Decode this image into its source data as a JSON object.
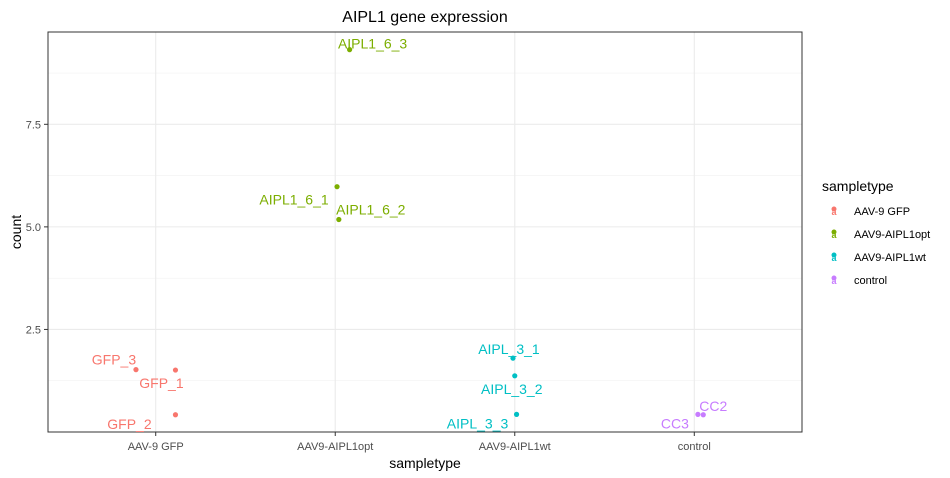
{
  "chart_data": {
    "type": "scatter",
    "title": "AIPL1 gene expression",
    "xlabel": "sampletype",
    "ylabel": "count",
    "categories": [
      "AAV-9 GFP",
      "AAV9-AIPL1opt",
      "AAV9-AIPL1wt",
      "control"
    ],
    "ylim": [
      0,
      9.75
    ],
    "yticks": [
      2.5,
      5.0,
      7.5
    ],
    "ytick_labels": [
      "2.5",
      "5.0",
      "7.5"
    ],
    "grid": true,
    "legend": {
      "title": "sampletype",
      "position": "right",
      "entries": [
        "AAV-9 GFP",
        "AAV9-AIPL1opt",
        "AAV9-AIPL1wt",
        "control"
      ]
    },
    "colors": {
      "AAV-9 GFP": "#F8766D",
      "AAV9-AIPL1opt": "#7CAE00",
      "AAV9-AIPL1wt": "#00BFC4",
      "control": "#C77CFF"
    },
    "points": [
      {
        "label": "GFP_3",
        "group": "AAV-9 GFP",
        "x": 0.89,
        "y": 1.52
      },
      {
        "label": "GFP_1",
        "group": "AAV-9 GFP",
        "x": 1.11,
        "y": 1.51
      },
      {
        "label": "GFP_2",
        "group": "AAV-9 GFP",
        "x": 1.11,
        "y": 0.42
      },
      {
        "label": "AIPL1_6_3",
        "group": "AAV9-AIPL1opt",
        "x": 2.08,
        "y": 9.32
      },
      {
        "label": "AIPL1_6_1",
        "group": "AAV9-AIPL1opt",
        "x": 2.01,
        "y": 5.98
      },
      {
        "label": "AIPL1_6_2",
        "group": "AAV9-AIPL1opt",
        "x": 2.02,
        "y": 5.18
      },
      {
        "label": "AIPL_3_1",
        "group": "AAV9-AIPL1wt",
        "x": 2.99,
        "y": 1.8
      },
      {
        "label": "AIPL_3_2",
        "group": "AAV9-AIPL1wt",
        "x": 3.0,
        "y": 1.37
      },
      {
        "label": "AIPL_3_3",
        "group": "AAV9-AIPL1wt",
        "x": 3.01,
        "y": 0.43
      },
      {
        "label": "CC2",
        "group": "control",
        "x": 4.05,
        "y": 0.42
      },
      {
        "label": "CC3",
        "group": "control",
        "x": 4.02,
        "y": 0.43
      }
    ]
  }
}
